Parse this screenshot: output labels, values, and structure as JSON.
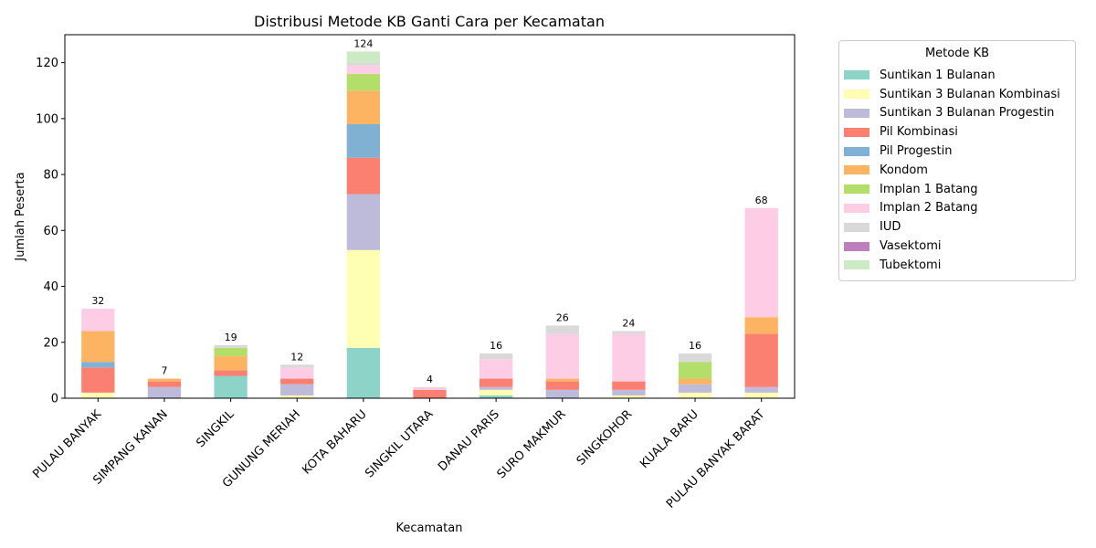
{
  "chart_data": {
    "type": "bar",
    "stacked": true,
    "title": "Distribusi Metode KB Ganti Cara per Kecamatan",
    "xlabel": "Kecamatan",
    "ylabel": "Jumlah Peserta",
    "ylim": [
      0,
      130
    ],
    "yticks": [
      0,
      20,
      40,
      60,
      80,
      100,
      120
    ],
    "grid": false,
    "legend_title": "Metode KB",
    "legend_placement": "outside-right",
    "categories": [
      "PULAU BANYAK",
      "SIMPANG KANAN",
      "SINGKIL",
      "GUNUNG MERIAH",
      "KOTA BAHARU",
      "SINGKIL UTARA",
      "DANAU PARIS",
      "SURO MAKMUR",
      "SINGKOHOR",
      "KUALA BARU",
      "PULAU BANYAK BARAT"
    ],
    "totals": [
      32,
      7,
      19,
      12,
      124,
      4,
      16,
      26,
      24,
      16,
      68
    ],
    "series": [
      {
        "name": "Suntikan 1 Bulanan",
        "color": "#8dd3c7",
        "values": [
          0,
          0,
          8,
          0,
          18,
          0,
          1,
          0,
          0,
          0,
          0
        ]
      },
      {
        "name": "Suntikan 3 Bulanan Kombinasi",
        "color": "#ffffb3",
        "values": [
          2,
          0,
          0,
          1,
          35,
          0,
          2,
          0,
          1,
          2,
          2
        ]
      },
      {
        "name": "Suntikan 3 Bulanan Progestin",
        "color": "#bebada",
        "values": [
          0,
          4,
          0,
          4,
          20,
          0,
          1,
          3,
          2,
          3,
          2
        ]
      },
      {
        "name": "Pil Kombinasi",
        "color": "#fb8072",
        "values": [
          9,
          2,
          2,
          2,
          13,
          3,
          3,
          3,
          3,
          0,
          19
        ]
      },
      {
        "name": "Pil Progestin",
        "color": "#80b1d3",
        "values": [
          2,
          0,
          0,
          0,
          12,
          0,
          0,
          0,
          0,
          0,
          0
        ]
      },
      {
        "name": "Kondom",
        "color": "#fdb462",
        "values": [
          11,
          1,
          5,
          0,
          12,
          0,
          0,
          1,
          0,
          2,
          6
        ]
      },
      {
        "name": "Implan 1 Batang",
        "color": "#b3de69",
        "values": [
          0,
          0,
          3,
          0,
          6,
          0,
          0,
          0,
          0,
          6,
          0
        ]
      },
      {
        "name": "Implan 2 Batang",
        "color": "#fccde5",
        "values": [
          8,
          0,
          0,
          4,
          3,
          1,
          7,
          16,
          17,
          0,
          39
        ]
      },
      {
        "name": "IUD",
        "color": "#d9d9d9",
        "values": [
          0,
          0,
          1,
          1,
          1,
          0,
          2,
          3,
          1,
          3,
          0
        ]
      },
      {
        "name": "Vasektomi",
        "color": "#bc80bd",
        "values": [
          0,
          0,
          0,
          0,
          0,
          0,
          0,
          0,
          0,
          0,
          0
        ]
      },
      {
        "name": "Tubektomi",
        "color": "#ccebc5",
        "values": [
          0,
          0,
          0,
          0,
          4,
          0,
          0,
          0,
          0,
          0,
          0
        ]
      }
    ]
  }
}
